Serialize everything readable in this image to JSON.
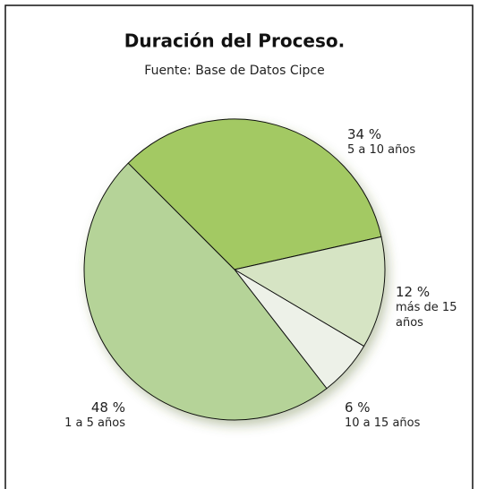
{
  "chart_data": {
    "type": "pie",
    "title": "Duración del Proceso.",
    "subtitle": "Fuente: Base de Datos Cipce",
    "categories": [
      "5 a 10 años",
      "más de 15 años",
      "10 a 15 años",
      "1 a 5 años"
    ],
    "values": [
      34,
      12,
      6,
      48
    ],
    "value_labels": [
      "34 %",
      "12 %",
      "6 %",
      "48 %"
    ],
    "colors": [
      "#a3c964",
      "#d6e4c4",
      "#edf1e8",
      "#b5d398"
    ]
  }
}
